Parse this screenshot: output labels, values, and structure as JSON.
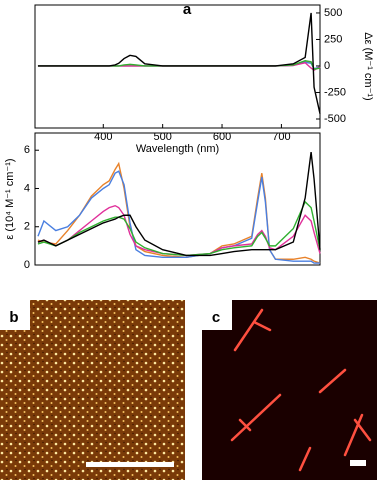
{
  "panels": [
    "a",
    "b",
    "c"
  ],
  "chart_data": [
    {
      "type": "line",
      "x_label": "Wavelength (nm)",
      "y2_label": "Δε (M⁻¹ cm⁻¹)",
      "x": [
        290,
        300,
        320,
        340,
        360,
        380,
        400,
        410,
        420,
        426,
        435,
        445,
        455,
        470,
        500,
        540,
        580,
        600,
        620,
        650,
        660,
        667,
        673,
        680,
        690,
        720,
        740,
        750,
        755,
        765
      ],
      "xlim": [
        285,
        765
      ],
      "xticks": [
        400,
        500,
        600,
        700
      ],
      "y2lim": [
        -585,
        575
      ],
      "y2ticks": [
        500,
        250,
        0,
        -250,
        -500
      ],
      "series": [
        {
          "color": "#e8822a",
          "axis": "y2",
          "values": [
            0,
            0,
            0,
            0,
            0,
            0,
            0,
            0,
            0,
            0,
            0,
            0,
            0,
            0,
            0,
            0,
            0,
            0,
            0,
            0,
            0,
            0,
            0,
            0,
            0,
            5,
            40,
            30,
            -30,
            -10
          ]
        },
        {
          "color": "#4a7fe0",
          "axis": "y2",
          "values": [
            0,
            0,
            0,
            0,
            0,
            0,
            0,
            0,
            0,
            0,
            0,
            0,
            0,
            0,
            0,
            0,
            0,
            0,
            0,
            0,
            0,
            0,
            0,
            0,
            0,
            5,
            35,
            25,
            -25,
            -10
          ]
        },
        {
          "color": "#e0309a",
          "axis": "y2",
          "values": [
            0,
            0,
            0,
            0,
            0,
            0,
            0,
            0,
            0,
            0,
            0,
            0,
            0,
            0,
            0,
            0,
            0,
            0,
            0,
            0,
            0,
            0,
            0,
            0,
            0,
            5,
            30,
            -20,
            -40,
            -10
          ]
        },
        {
          "color": "#30b030",
          "axis": "y2",
          "values": [
            0,
            0,
            0,
            0,
            0,
            0,
            0,
            0,
            0,
            0,
            10,
            15,
            10,
            0,
            0,
            0,
            0,
            0,
            0,
            0,
            0,
            0,
            0,
            0,
            0,
            10,
            50,
            40,
            -30,
            -20
          ]
        },
        {
          "color": "#000000",
          "axis": "y2",
          "values": [
            0,
            0,
            0,
            0,
            0,
            0,
            0,
            0,
            10,
            25,
            70,
            100,
            90,
            20,
            0,
            0,
            0,
            0,
            0,
            0,
            0,
            0,
            0,
            0,
            0,
            20,
            80,
            500,
            -200,
            -450
          ]
        }
      ]
    },
    {
      "type": "line",
      "y_label": "ε (10⁴ M⁻¹ cm⁻¹)",
      "x": [
        290,
        300,
        320,
        340,
        360,
        380,
        400,
        410,
        420,
        426,
        435,
        445,
        455,
        470,
        500,
        540,
        580,
        600,
        620,
        650,
        660,
        667,
        673,
        680,
        690,
        720,
        740,
        750,
        755,
        765
      ],
      "xlim": [
        285,
        765
      ],
      "ylim": [
        0,
        6.9
      ],
      "yticks": [
        0,
        2,
        4,
        6
      ],
      "series": [
        {
          "color": "#e8822a",
          "values": [
            1.3,
            1.2,
            1.1,
            1.8,
            2.6,
            3.6,
            4.2,
            4.4,
            5.0,
            5.3,
            4.0,
            2.0,
            1.0,
            0.7,
            0.5,
            0.4,
            0.6,
            1.0,
            1.1,
            1.5,
            3.5,
            4.8,
            3.5,
            0.8,
            0.3,
            0.3,
            0.4,
            0.3,
            0.2,
            0.1
          ]
        },
        {
          "color": "#4a7fe0",
          "values": [
            1.5,
            2.3,
            1.8,
            2.0,
            2.6,
            3.5,
            4.0,
            4.2,
            4.8,
            4.9,
            4.2,
            2.2,
            0.8,
            0.5,
            0.4,
            0.4,
            0.6,
            0.9,
            1.0,
            1.4,
            3.3,
            4.6,
            3.3,
            0.8,
            0.3,
            0.2,
            0.2,
            0.2,
            0.1,
            0.1
          ]
        },
        {
          "color": "#e0309a",
          "values": [
            1.2,
            1.3,
            1.0,
            1.3,
            1.8,
            2.3,
            2.8,
            3.0,
            3.1,
            3.0,
            2.6,
            1.6,
            1.0,
            0.8,
            0.6,
            0.5,
            0.6,
            0.9,
            1.0,
            1.1,
            1.6,
            1.8,
            1.5,
            0.9,
            0.8,
            1.5,
            2.6,
            2.3,
            1.7,
            0.6
          ]
        },
        {
          "color": "#30b030",
          "values": [
            1.1,
            1.2,
            1.0,
            1.3,
            1.7,
            2.0,
            2.3,
            2.4,
            2.5,
            2.5,
            2.4,
            1.9,
            1.2,
            0.9,
            0.6,
            0.5,
            0.6,
            0.8,
            0.9,
            1.0,
            1.5,
            1.7,
            1.4,
            1.0,
            1.0,
            1.9,
            3.3,
            3.0,
            2.3,
            0.8
          ]
        },
        {
          "color": "#000000",
          "values": [
            1.2,
            1.3,
            1.0,
            1.3,
            1.6,
            1.9,
            2.2,
            2.3,
            2.4,
            2.5,
            2.6,
            2.6,
            2.0,
            1.3,
            0.8,
            0.5,
            0.5,
            0.6,
            0.7,
            0.8,
            0.8,
            0.8,
            0.8,
            0.8,
            0.8,
            1.2,
            3.5,
            5.9,
            4.5,
            0.8
          ]
        }
      ]
    }
  ]
}
